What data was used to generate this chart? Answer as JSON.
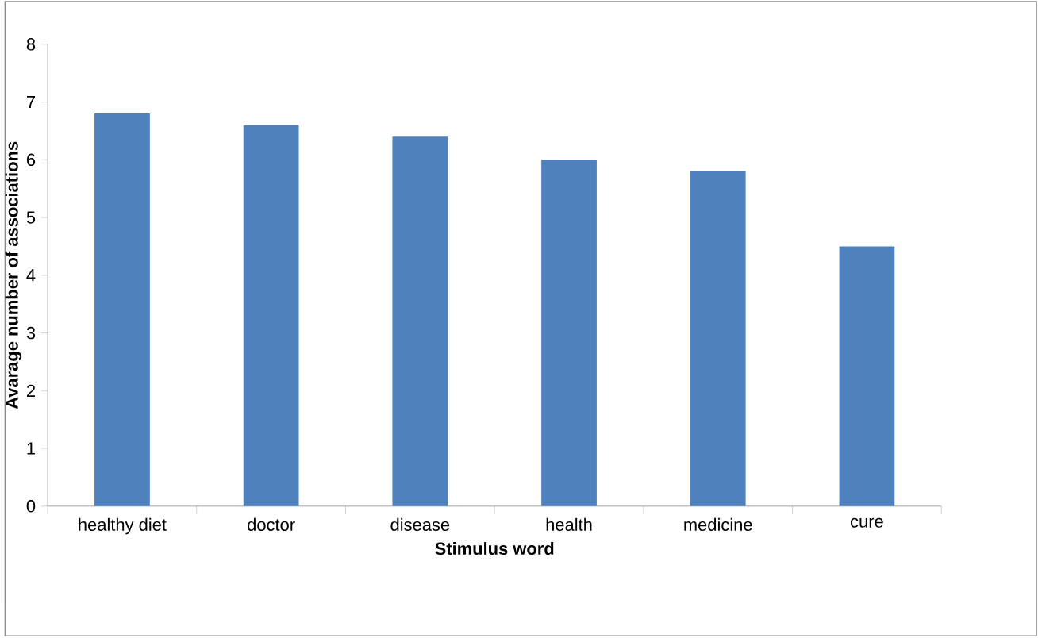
{
  "chart_data": {
    "type": "bar",
    "xlabel": "Stimulus word",
    "ylabel": "Avarage number of associations",
    "categories": [
      "healthy diet",
      "doctor",
      "disease",
      "health",
      "medicine",
      "cure"
    ],
    "values": [
      6.8,
      6.6,
      6.4,
      6.0,
      5.8,
      4.5
    ],
    "color": "#4f81bd",
    "ylim": [
      0,
      8
    ],
    "yticks": [
      0,
      1,
      2,
      3,
      4,
      5,
      6,
      7,
      8
    ]
  }
}
